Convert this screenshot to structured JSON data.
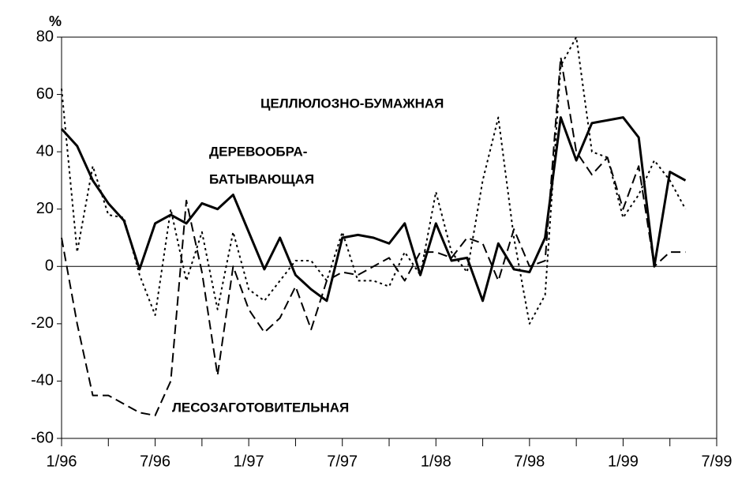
{
  "chart_data": {
    "type": "line",
    "y_label": "%",
    "x": [
      0,
      1,
      2,
      3,
      4,
      5,
      6,
      7,
      8,
      9,
      10,
      11,
      12,
      13,
      14,
      15,
      16,
      17,
      18,
      19,
      20,
      21,
      22,
      23,
      24,
      25,
      26,
      27,
      28,
      29,
      30,
      31,
      32,
      33,
      34,
      35,
      36,
      37,
      38,
      39,
      40
    ],
    "series": [
      {
        "style": "solid",
        "color": "#000000",
        "values": [
          48,
          42,
          30,
          22,
          16,
          -1,
          15,
          18,
          15,
          22,
          20,
          25,
          12,
          -1,
          10,
          -3,
          -8,
          -12,
          10,
          11,
          10,
          8,
          15,
          -3,
          15,
          2,
          3,
          -12,
          8,
          -1,
          -2,
          10,
          52,
          37,
          50,
          51,
          52,
          45,
          0,
          33,
          30
        ]
      },
      {
        "style": "dotted",
        "color": "#000000",
        "values": [
          62,
          5,
          35,
          18,
          17,
          -3,
          -17,
          20,
          -5,
          12,
          -15,
          12,
          -8,
          -12,
          -5,
          2,
          2,
          -5,
          12,
          -5,
          -5,
          -7,
          5,
          -3,
          26,
          5,
          -2,
          30,
          52,
          10,
          -20,
          -10,
          70,
          80,
          40,
          38,
          17,
          25,
          37,
          30,
          20
        ]
      },
      {
        "style": "dashed",
        "color": "#000000",
        "values": [
          10,
          -20,
          -45,
          -45,
          -48,
          -51,
          -52,
          -40,
          23,
          -2,
          -38,
          0,
          -15,
          -23,
          -18,
          -7,
          -22,
          -5,
          -2,
          -3,
          0,
          3,
          -5,
          5,
          5,
          3,
          10,
          8,
          -5,
          13,
          0,
          2,
          73,
          40,
          32,
          38,
          20,
          35,
          0,
          5,
          5
        ]
      }
    ],
    "annotations": [
      {
        "text": "ЦЕЛЛЮЛОЗНО-БУМАЖНАЯ"
      },
      {
        "text": "ДЕРЕВООБРА-"
      },
      {
        "text": "БАТЫВАЮЩАЯ"
      },
      {
        "text": "ЛЕСОЗАГОТОВИТЕЛЬНАЯ"
      }
    ],
    "xlim": [
      0,
      42
    ],
    "xticks": [
      {
        "value": 0,
        "label": "1/96"
      },
      {
        "value": 6,
        "label": "7/96"
      },
      {
        "value": 12,
        "label": "1/97"
      },
      {
        "value": 18,
        "label": "7/97"
      },
      {
        "value": 24,
        "label": "1/98"
      },
      {
        "value": 30,
        "label": "7/98"
      },
      {
        "value": 36,
        "label": "1/99"
      },
      {
        "value": 42,
        "label": "7/99"
      }
    ],
    "ylim": [
      -60,
      80
    ],
    "yticks": [
      -60,
      -40,
      -20,
      0,
      20,
      40,
      60,
      80
    ]
  }
}
